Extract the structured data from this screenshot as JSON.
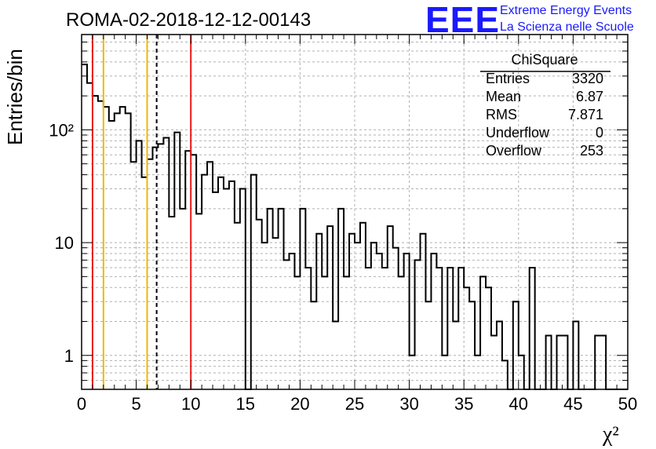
{
  "header": {
    "title": "ROMA-02-2018-12-12-00143",
    "logo_mark": "EEE",
    "logo_line1": "Extreme Energy Events",
    "logo_line2": "La Scienza nelle Scuole"
  },
  "stats_box": {
    "title": "ChiSquare",
    "rows": [
      {
        "label": "Entries",
        "value": "3320"
      },
      {
        "label": "Mean",
        "value": "6.87"
      },
      {
        "label": "RMS",
        "value": "7.871"
      },
      {
        "label": "Underflow",
        "value": "0"
      },
      {
        "label": "Overflow",
        "value": "253"
      }
    ]
  },
  "chart_data": {
    "type": "histogram",
    "title": "ROMA-02-2018-12-12-00143",
    "xlabel": "χ²",
    "ylabel": "Entries/bin",
    "xlim": [
      0,
      50
    ],
    "ylim": [
      0.5,
      700
    ],
    "yscale": "log",
    "grid": true,
    "bin_width": 0.5,
    "x_ticks": [
      0,
      5,
      10,
      15,
      20,
      25,
      30,
      35,
      40,
      45,
      50
    ],
    "y_ticks": [
      {
        "value": 1,
        "label": "1"
      },
      {
        "value": 10,
        "label": "10"
      },
      {
        "value": 100,
        "label": "10²"
      }
    ],
    "counts": [
      380,
      260,
      200,
      180,
      160,
      120,
      140,
      160,
      140,
      52,
      80,
      38,
      55,
      70,
      75,
      85,
      17,
      95,
      20,
      65,
      60,
      18,
      40,
      52,
      28,
      38,
      30,
      35,
      15,
      30,
      0,
      40,
      16,
      10,
      20,
      11,
      20,
      7,
      8,
      5,
      20,
      6,
      3,
      12,
      5,
      14,
      2,
      20,
      5,
      12,
      10,
      15,
      6,
      10,
      8,
      6,
      14,
      9,
      5,
      8,
      1,
      7,
      12,
      3,
      8,
      6,
      1,
      6,
      2,
      6,
      4,
      3,
      1,
      5,
      4,
      1.5,
      2,
      0.9,
      0.5,
      3,
      1,
      0.5,
      6,
      0.5,
      0.5,
      1.5,
      0.5,
      1.5,
      1.5,
      0.5,
      2,
      0.5,
      0.5,
      0.5,
      1.5,
      1.5,
      0.5,
      0.5,
      0.5,
      0.5
    ],
    "vertical_lines": [
      {
        "x": 1,
        "color": "#e8191a",
        "dash": false
      },
      {
        "x": 2,
        "color": "#f2b705",
        "dash": false
      },
      {
        "x": 6,
        "color": "#f2b705",
        "dash": false
      },
      {
        "x": 6.87,
        "color": "#000000",
        "dash": true
      },
      {
        "x": 10,
        "color": "#e8191a",
        "dash": false
      }
    ]
  }
}
